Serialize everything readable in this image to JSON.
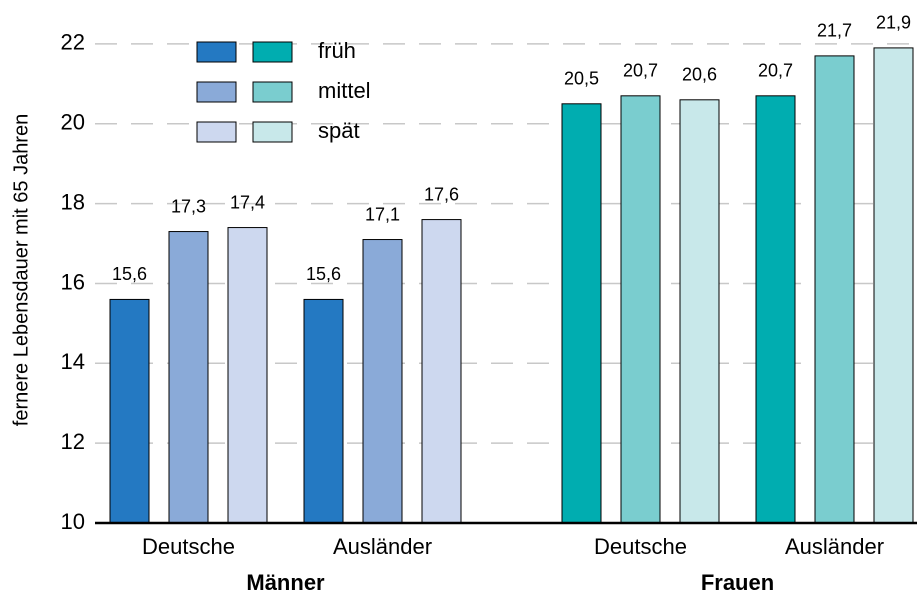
{
  "chart_data": {
    "type": "bar",
    "ylabel": "fernere Lebensdauer mit 65 Jahren",
    "ylim": [
      10,
      23.1
    ],
    "yticks": [
      10,
      12,
      14,
      16,
      18,
      20,
      22
    ],
    "grid": true,
    "panels": [
      "Männer",
      "Frauen"
    ],
    "categories": [
      "Deutsche",
      "Ausländer"
    ],
    "series": [
      {
        "name": "früh",
        "colors": [
          "#2479c2",
          "#00adb0"
        ],
        "values": [
          [
            15.6,
            15.6
          ],
          [
            20.5,
            20.7
          ]
        ],
        "value_labels": [
          [
            "15,6",
            "15,6"
          ],
          [
            "20,5",
            "20,7"
          ]
        ]
      },
      {
        "name": "mittel",
        "colors": [
          "#8aaad8",
          "#7acdcf"
        ],
        "values": [
          [
            17.3,
            17.1
          ],
          [
            20.7,
            21.7
          ]
        ],
        "value_labels": [
          [
            "17,3",
            "17,1"
          ],
          [
            "20,7",
            "21,7"
          ]
        ]
      },
      {
        "name": "spät",
        "colors": [
          "#cdd8ef",
          "#c8e8ea"
        ],
        "values": [
          [
            17.4,
            17.6
          ],
          [
            20.6,
            21.9
          ]
        ],
        "value_labels": [
          [
            "17,4",
            "17,6"
          ],
          [
            "20,6",
            "21,9"
          ]
        ]
      }
    ]
  }
}
